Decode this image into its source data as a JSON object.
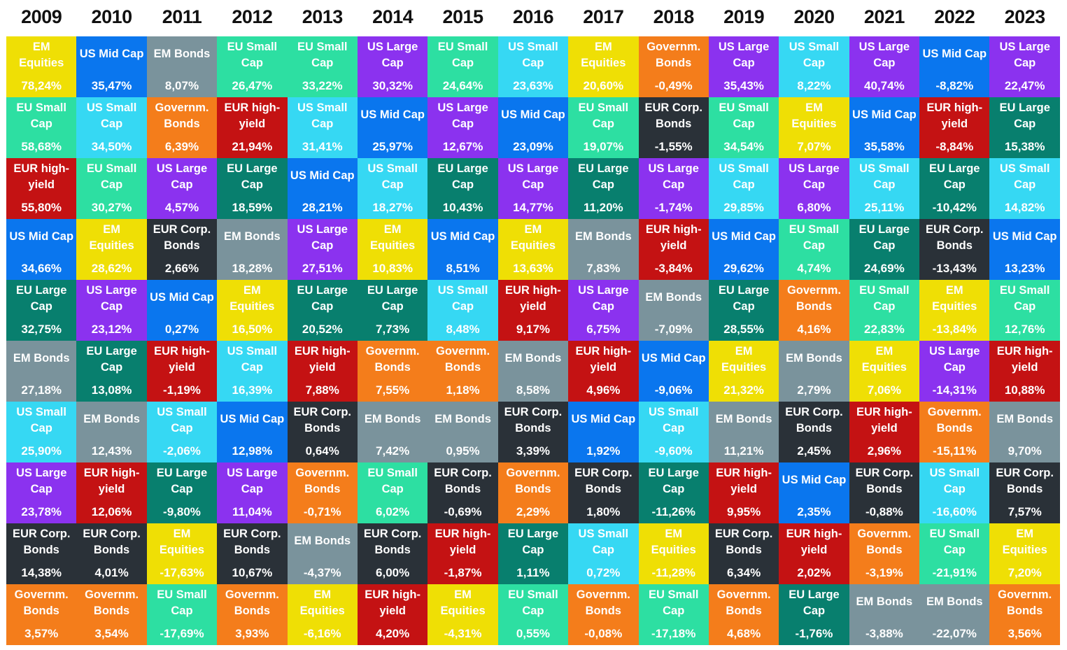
{
  "colors": {
    "US Large Cap": "#8b32ef",
    "US Mid Cap": "#0a76ee",
    "US Small Cap": "#36d8f3",
    "EU Large Cap": "#087f6e",
    "EU Small Cap": "#2ddfa2",
    "EM Equities": "#efdf05",
    "EM Bonds": "#7a939c",
    "Governm. Bonds": "#f47d1b",
    "EUR Corp. Bonds": "#2a3138",
    "EUR high-yield": "#c41213"
  },
  "chart_data": {
    "type": "table",
    "years": [
      "2009",
      "2010",
      "2011",
      "2012",
      "2013",
      "2014",
      "2015",
      "2016",
      "2017",
      "2018",
      "2019",
      "2020",
      "2021",
      "2022",
      "2023"
    ],
    "columns": [
      [
        [
          "EM Equities",
          "78,24%"
        ],
        [
          "EU Small Cap",
          "58,68%"
        ],
        [
          "EUR high-yield",
          "55,80%"
        ],
        [
          "US Mid Cap",
          "34,66%"
        ],
        [
          "EU Large Cap",
          "32,75%"
        ],
        [
          "EM Bonds",
          "27,18%"
        ],
        [
          "US Small Cap",
          "25,90%"
        ],
        [
          "US Large Cap",
          "23,78%"
        ],
        [
          "EUR Corp. Bonds",
          "14,38%"
        ],
        [
          "Governm. Bonds",
          "3,57%"
        ]
      ],
      [
        [
          "US Mid Cap",
          "35,47%"
        ],
        [
          "US Small Cap",
          "34,50%"
        ],
        [
          "EU Small Cap",
          "30,27%"
        ],
        [
          "EM Equities",
          "28,62%"
        ],
        [
          "US Large Cap",
          "23,12%"
        ],
        [
          "EU Large Cap",
          "13,08%"
        ],
        [
          "EM Bonds",
          "12,43%"
        ],
        [
          "EUR high-yield",
          "12,06%"
        ],
        [
          "EUR Corp. Bonds",
          "4,01%"
        ],
        [
          "Governm. Bonds",
          "3,54%"
        ]
      ],
      [
        [
          "EM Bonds",
          "8,07%"
        ],
        [
          "Governm. Bonds",
          "6,39%"
        ],
        [
          "US Large Cap",
          "4,57%"
        ],
        [
          "EUR Corp. Bonds",
          "2,66%"
        ],
        [
          "US Mid Cap",
          "0,27%"
        ],
        [
          "EUR high-yield",
          "-1,19%"
        ],
        [
          "US Small Cap",
          "-2,06%"
        ],
        [
          "EU Large Cap",
          "-9,80%"
        ],
        [
          "EM Equities",
          "-17,63%"
        ],
        [
          "EU Small Cap",
          "-17,69%"
        ]
      ],
      [
        [
          "EU Small Cap",
          "26,47%"
        ],
        [
          "EUR high-yield",
          "21,94%"
        ],
        [
          "EU Large Cap",
          "18,59%"
        ],
        [
          "EM Bonds",
          "18,28%"
        ],
        [
          "EM Equities",
          "16,50%"
        ],
        [
          "US Small Cap",
          "16,39%"
        ],
        [
          "US Mid Cap",
          "12,98%"
        ],
        [
          "US Large Cap",
          "11,04%"
        ],
        [
          "EUR Corp. Bonds",
          "10,67%"
        ],
        [
          "Governm. Bonds",
          "3,93%"
        ]
      ],
      [
        [
          "EU Small Cap",
          "33,22%"
        ],
        [
          "US Small Cap",
          "31,41%"
        ],
        [
          "US Mid Cap",
          "28,21%"
        ],
        [
          "US Large Cap",
          "27,51%"
        ],
        [
          "EU Large Cap",
          "20,52%"
        ],
        [
          "EUR high-yield",
          "7,88%"
        ],
        [
          "EUR Corp. Bonds",
          "0,64%"
        ],
        [
          "Governm. Bonds",
          "-0,71%"
        ],
        [
          "EM Bonds",
          "-4,37%"
        ],
        [
          "EM Equities",
          "-6,16%"
        ]
      ],
      [
        [
          "US Large Cap",
          "30,32%"
        ],
        [
          "US Mid Cap",
          "25,97%"
        ],
        [
          "US Small Cap",
          "18,27%"
        ],
        [
          "EM Equities",
          "10,83%"
        ],
        [
          "EU Large Cap",
          "7,73%"
        ],
        [
          "Governm. Bonds",
          "7,55%"
        ],
        [
          "EM Bonds",
          "7,42%"
        ],
        [
          "EU Small Cap",
          "6,02%"
        ],
        [
          "EUR Corp. Bonds",
          "6,00%"
        ],
        [
          "EUR high-yield",
          "4,20%"
        ]
      ],
      [
        [
          "EU Small Cap",
          "24,64%"
        ],
        [
          "US Large Cap",
          "12,67%"
        ],
        [
          "EU Large Cap",
          "10,43%"
        ],
        [
          "US Mid Cap",
          "8,51%"
        ],
        [
          "US Small Cap",
          "8,48%"
        ],
        [
          "Governm. Bonds",
          "1,18%"
        ],
        [
          "EM Bonds",
          "0,95%"
        ],
        [
          "EUR Corp. Bonds",
          "-0,69%"
        ],
        [
          "EUR high-yield",
          "-1,87%"
        ],
        [
          "EM Equities",
          "-4,31%"
        ]
      ],
      [
        [
          "US Small Cap",
          "23,63%"
        ],
        [
          "US Mid Cap",
          "23,09%"
        ],
        [
          "US Large Cap",
          "14,77%"
        ],
        [
          "EM Equities",
          "13,63%"
        ],
        [
          "EUR high-yield",
          "9,17%"
        ],
        [
          "EM Bonds",
          "8,58%"
        ],
        [
          "EUR Corp. Bonds",
          "3,39%"
        ],
        [
          "Governm. Bonds",
          "2,29%"
        ],
        [
          "EU Large Cap",
          "1,11%"
        ],
        [
          "EU Small Cap",
          "0,55%"
        ]
      ],
      [
        [
          "EM Equities",
          "20,60%"
        ],
        [
          "EU Small Cap",
          "19,07%"
        ],
        [
          "EU Large Cap",
          "11,20%"
        ],
        [
          "EM Bonds",
          "7,83%"
        ],
        [
          "US Large Cap",
          "6,75%"
        ],
        [
          "EUR high-yield",
          "4,96%"
        ],
        [
          "US Mid Cap",
          "1,92%"
        ],
        [
          "EUR Corp. Bonds",
          "1,80%"
        ],
        [
          "US Small Cap",
          "0,72%"
        ],
        [
          "Governm. Bonds",
          "-0,08%"
        ]
      ],
      [
        [
          "Governm. Bonds",
          "-0,49%"
        ],
        [
          "EUR Corp. Bonds",
          "-1,55%"
        ],
        [
          "US Large Cap",
          "-1,74%"
        ],
        [
          "EUR high-yield",
          "-3,84%"
        ],
        [
          "EM Bonds",
          "-7,09%"
        ],
        [
          "US Mid Cap",
          "-9,06%"
        ],
        [
          "US Small Cap",
          "-9,60%"
        ],
        [
          "EU Large Cap",
          "-11,26%"
        ],
        [
          "EM Equities",
          "-11,28%"
        ],
        [
          "EU Small Cap",
          "-17,18%"
        ]
      ],
      [
        [
          "US Large Cap",
          "35,43%"
        ],
        [
          "EU Small Cap",
          "34,54%"
        ],
        [
          "US Small Cap",
          "29,85%"
        ],
        [
          "US Mid Cap",
          "29,62%"
        ],
        [
          "EU Large Cap",
          "28,55%"
        ],
        [
          "EM Equities",
          "21,32%"
        ],
        [
          "EM Bonds",
          "11,21%"
        ],
        [
          "EUR high-yield",
          "9,95%"
        ],
        [
          "EUR Corp. Bonds",
          "6,34%"
        ],
        [
          "Governm. Bonds",
          "4,68%"
        ]
      ],
      [
        [
          "US Small Cap",
          "8,22%"
        ],
        [
          "EM Equities",
          "7,07%"
        ],
        [
          "US Large Cap",
          "6,80%"
        ],
        [
          "EU Small Cap",
          "4,74%"
        ],
        [
          "Governm. Bonds",
          "4,16%"
        ],
        [
          "EM Bonds",
          "2,79%"
        ],
        [
          "EUR Corp. Bonds",
          "2,45%"
        ],
        [
          "US Mid Cap",
          "2,35%"
        ],
        [
          "EUR high-yield",
          "2,02%"
        ],
        [
          "EU Large Cap",
          "-1,76%"
        ]
      ],
      [
        [
          "US Large Cap",
          "40,74%"
        ],
        [
          "US Mid Cap",
          "35,58%"
        ],
        [
          "US Small Cap",
          "25,11%"
        ],
        [
          "EU Large Cap",
          "24,69%"
        ],
        [
          "EU Small Cap",
          "22,83%"
        ],
        [
          "EM Equities",
          "7,06%"
        ],
        [
          "EUR high-yield",
          "2,96%"
        ],
        [
          "EUR Corp. Bonds",
          "-0,88%"
        ],
        [
          "Governm. Bonds",
          "-3,19%"
        ],
        [
          "EM Bonds",
          "-3,88%"
        ]
      ],
      [
        [
          "US Mid Cap",
          "-8,82%"
        ],
        [
          "EUR high-yield",
          "-8,84%"
        ],
        [
          "EU Large Cap",
          "-10,42%"
        ],
        [
          "EUR Corp. Bonds",
          "-13,43%"
        ],
        [
          "EM Equities",
          "-13,84%"
        ],
        [
          "US Large Cap",
          "-14,31%"
        ],
        [
          "Governm. Bonds",
          "-15,11%"
        ],
        [
          "US Small Cap",
          "-16,60%"
        ],
        [
          "EU Small Cap",
          "-21,91%"
        ],
        [
          "EM Bonds",
          "-22,07%"
        ]
      ],
      [
        [
          "US Large Cap",
          "22,47%"
        ],
        [
          "EU Large Cap",
          "15,38%"
        ],
        [
          "US Small Cap",
          "14,82%"
        ],
        [
          "US Mid Cap",
          "13,23%"
        ],
        [
          "EU Small Cap",
          "12,76%"
        ],
        [
          "EUR high-yield",
          "10,88%"
        ],
        [
          "EM Bonds",
          "9,70%"
        ],
        [
          "EUR Corp. Bonds",
          "7,57%"
        ],
        [
          "EM Equities",
          "7,20%"
        ],
        [
          "Governm. Bonds",
          "3,56%"
        ]
      ]
    ]
  }
}
